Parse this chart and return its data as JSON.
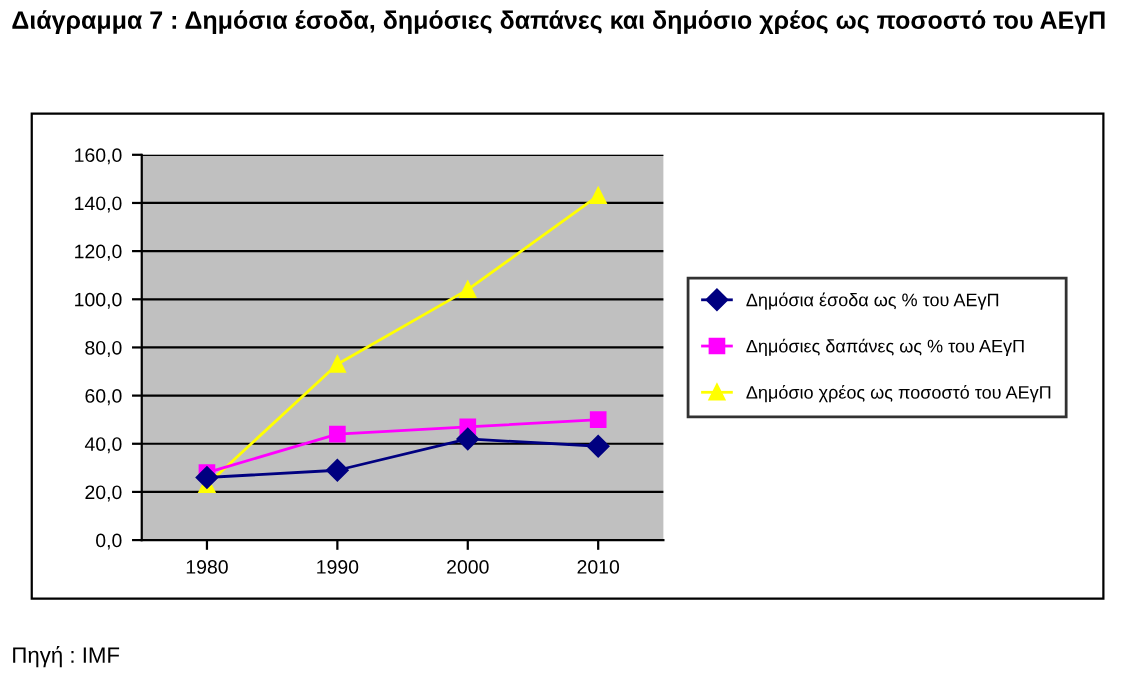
{
  "chart_data": {
    "type": "line",
    "title": "Διάγραμμα 7 : Δημόσια έσοδα, δημόσιες δαπάνες και δημόσιο χρέος ως ποσοστό του ΑΕγΠ",
    "categories": [
      "1980",
      "1990",
      "2000",
      "2010"
    ],
    "series": [
      {
        "name": "Δημόσια έσοδα ως % του ΑΕγΠ",
        "color": "#000080",
        "marker": "diamond",
        "values": [
          26,
          29,
          42,
          39
        ]
      },
      {
        "name": "Δημόσιες δαπάνες ως % του ΑΕγΠ",
        "color": "#ff00ff",
        "marker": "square",
        "values": [
          28,
          44,
          47,
          50
        ]
      },
      {
        "name": "Δημόσιο χρέος ως ποσοστό του ΑΕγΠ",
        "color": "#ffff00",
        "marker": "triangle",
        "values": [
          23,
          73,
          104,
          143
        ]
      }
    ],
    "ylim": [
      0,
      160
    ],
    "yticks": [
      {
        "value": 0,
        "label": "0,0"
      },
      {
        "value": 20,
        "label": "20,0"
      },
      {
        "value": 40,
        "label": "40,0"
      },
      {
        "value": 60,
        "label": "60,0"
      },
      {
        "value": 80,
        "label": "80,0"
      },
      {
        "value": 100,
        "label": "100,0"
      },
      {
        "value": 120,
        "label": "120,0"
      },
      {
        "value": 140,
        "label": "140,0"
      },
      {
        "value": 160,
        "label": "160,0"
      }
    ],
    "grid": "y",
    "legend": "right",
    "line_style": "solid",
    "annotations": [
      "Πηγή : IMF"
    ]
  }
}
